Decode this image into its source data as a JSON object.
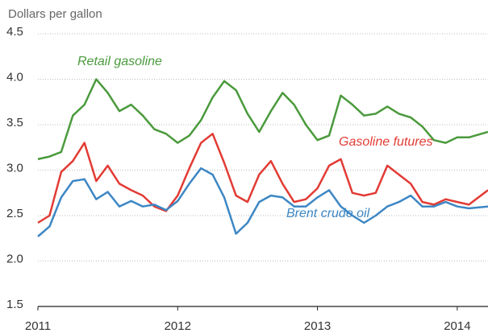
{
  "chart_data": {
    "type": "line",
    "ylabel": "Dollars per gallon",
    "x": [
      2011,
      2011.083,
      2011.167,
      2011.25,
      2011.333,
      2011.417,
      2011.5,
      2011.583,
      2011.667,
      2011.75,
      2011.833,
      2011.917,
      2012,
      2012.083,
      2012.167,
      2012.25,
      2012.333,
      2012.417,
      2012.5,
      2012.583,
      2012.667,
      2012.75,
      2012.833,
      2012.917,
      2013,
      2013.083,
      2013.167,
      2013.25,
      2013.333,
      2013.417,
      2013.5,
      2013.583,
      2013.667,
      2013.75,
      2013.833,
      2013.917,
      2014,
      2014.083,
      2014.22
    ],
    "series": [
      {
        "name": "Retail gasoline",
        "color": "#4a9a3c",
        "values": [
          3.12,
          3.15,
          3.2,
          3.6,
          3.72,
          4.0,
          3.85,
          3.65,
          3.72,
          3.6,
          3.45,
          3.4,
          3.3,
          3.38,
          3.55,
          3.8,
          3.98,
          3.88,
          3.62,
          3.42,
          3.65,
          3.85,
          3.72,
          3.5,
          3.33,
          3.38,
          3.82,
          3.72,
          3.6,
          3.62,
          3.7,
          3.62,
          3.58,
          3.48,
          3.33,
          3.3,
          3.36,
          3.36,
          3.42
        ]
      },
      {
        "name": "Gasoline futures",
        "color": "#e23b35",
        "values": [
          2.42,
          2.5,
          2.98,
          3.1,
          3.3,
          2.88,
          3.05,
          2.85,
          2.78,
          2.72,
          2.6,
          2.55,
          2.72,
          3.02,
          3.3,
          3.4,
          3.08,
          2.72,
          2.65,
          2.95,
          3.1,
          2.85,
          2.65,
          2.68,
          2.8,
          3.05,
          3.12,
          2.75,
          2.72,
          2.75,
          3.05,
          2.95,
          2.85,
          2.65,
          2.62,
          2.68,
          2.65,
          2.62,
          2.78
        ]
      },
      {
        "name": "Brent crude oil",
        "color": "#3d87c4",
        "values": [
          2.27,
          2.38,
          2.7,
          2.88,
          2.9,
          2.68,
          2.76,
          2.6,
          2.66,
          2.6,
          2.62,
          2.56,
          2.66,
          2.85,
          3.02,
          2.95,
          2.7,
          2.3,
          2.42,
          2.65,
          2.72,
          2.7,
          2.6,
          2.6,
          2.7,
          2.78,
          2.6,
          2.5,
          2.42,
          2.5,
          2.6,
          2.65,
          2.72,
          2.6,
          2.6,
          2.65,
          2.6,
          2.58,
          2.6
        ]
      }
    ],
    "xlim": [
      2011,
      2014.22
    ],
    "xticks": [
      2011,
      2012,
      2013,
      2014
    ],
    "ylim": [
      1.5,
      4.5
    ],
    "yticks": [
      {
        "value": 1.5,
        "label": "1.5"
      },
      {
        "value": 2,
        "label": "2.0"
      },
      {
        "value": 2.5,
        "label": "2.5"
      },
      {
        "value": 3,
        "label": "3.0"
      },
      {
        "value": 3.5,
        "label": "3.5"
      },
      {
        "value": 4,
        "label": "4.0"
      },
      {
        "value": 4.5,
        "label": "4.5"
      }
    ],
    "grid": true
  }
}
